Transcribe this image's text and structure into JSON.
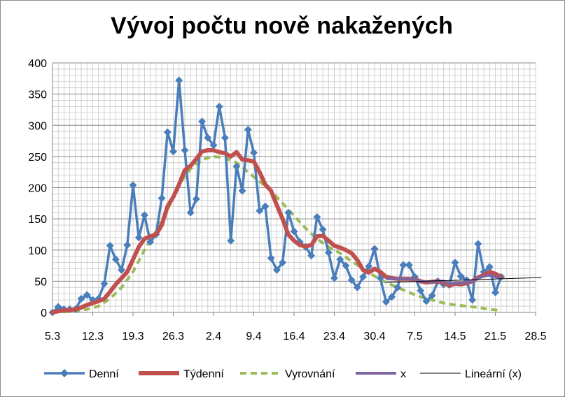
{
  "chart_data": {
    "type": "line",
    "title": "Vývoj počtu nově nakažených",
    "xlabel": "",
    "ylabel": "",
    "x_tick_labels": [
      "5.3",
      "12.3",
      "19.3",
      "26.3",
      "2.4",
      "9.4",
      "16.4",
      "23.4",
      "30.4",
      "7.5",
      "14.5",
      "21.5",
      "28.5"
    ],
    "x_domain_days": [
      0,
      84
    ],
    "ylim": [
      0,
      400
    ],
    "y_ticks": [
      0,
      50,
      100,
      150,
      200,
      250,
      300,
      350,
      400
    ],
    "grid": true,
    "legend_position": "bottom",
    "colors": {
      "Denní": "#4a7ebb",
      "Týdenní": "#c0504d",
      "Vyrovnání": "#9bbb59",
      "x": "#8064a2",
      "Lineární (x)": "#000000"
    },
    "series": [
      {
        "name": "Denní",
        "style": "line-diamond",
        "x": [
          0,
          1,
          2,
          3,
          4,
          5,
          6,
          7,
          8,
          9,
          10,
          11,
          12,
          13,
          14,
          15,
          16,
          17,
          18,
          19,
          20,
          21,
          22,
          23,
          24,
          25,
          26,
          27,
          28,
          29,
          30,
          31,
          32,
          33,
          34,
          35,
          36,
          37,
          38,
          39,
          40,
          41,
          42,
          43,
          44,
          45,
          46,
          47,
          48,
          49,
          50,
          51,
          52,
          53,
          54,
          55,
          56,
          57,
          58,
          59,
          60,
          61,
          62,
          63,
          64,
          65,
          66,
          67,
          68,
          69,
          70,
          71,
          72,
          73,
          74,
          75,
          76,
          77,
          78
        ],
        "values": [
          0,
          9,
          5,
          5,
          5,
          22,
          28,
          20,
          22,
          46,
          107,
          85,
          68,
          108,
          204,
          120,
          156,
          113,
          125,
          183,
          289,
          258,
          372,
          260,
          160,
          182,
          306,
          280,
          268,
          330,
          280,
          115,
          234,
          195,
          293,
          256,
          163,
          170,
          87,
          68,
          80,
          160,
          130,
          113,
          105,
          91,
          153,
          133,
          96,
          55,
          85,
          75,
          52,
          40,
          57,
          74,
          102,
          55,
          17,
          25,
          40,
          76,
          76,
          57,
          35,
          18,
          27,
          50,
          45,
          44,
          80,
          58,
          52,
          20,
          110,
          65,
          73,
          32,
          57
        ]
      },
      {
        "name": "Týdenní",
        "style": "thick-line",
        "x": [
          0,
          1,
          2,
          3,
          4,
          5,
          6,
          7,
          8,
          9,
          10,
          11,
          12,
          13,
          14,
          15,
          16,
          17,
          18,
          19,
          20,
          21,
          22,
          23,
          24,
          25,
          26,
          27,
          28,
          29,
          30,
          31,
          32,
          33,
          34,
          35,
          36,
          37,
          38,
          39,
          40,
          41,
          42,
          43,
          44,
          45,
          46,
          47,
          48,
          49,
          50,
          51,
          52,
          53,
          54,
          55,
          56,
          57,
          58,
          59,
          60,
          61,
          62,
          63,
          64,
          65,
          66,
          67,
          68,
          69,
          70,
          71,
          72,
          73,
          74,
          75,
          76,
          77,
          78
        ],
        "values": [
          0,
          2,
          3,
          4,
          5,
          8,
          12,
          15,
          18,
          22,
          33,
          45,
          55,
          65,
          85,
          105,
          118,
          122,
          125,
          140,
          170,
          185,
          205,
          228,
          235,
          246,
          258,
          260,
          260,
          257,
          255,
          250,
          257,
          245,
          244,
          242,
          225,
          205,
          195,
          172,
          150,
          125,
          115,
          108,
          106,
          108,
          122,
          123,
          115,
          107,
          104,
          100,
          95,
          84,
          68,
          64,
          70,
          65,
          57,
          55,
          54,
          54,
          54,
          53,
          50,
          48,
          49,
          50,
          48,
          43,
          46,
          45,
          47,
          50,
          56,
          60,
          65,
          62,
          57
        ]
      },
      {
        "name": "Vyrovnání",
        "style": "dashed",
        "x": [
          0,
          2,
          4,
          6,
          8,
          10,
          12,
          14,
          16,
          18,
          20,
          22,
          24,
          26,
          28,
          30,
          32,
          34,
          36,
          38,
          40,
          42,
          44,
          46,
          48,
          50,
          52,
          54,
          56,
          58,
          60,
          62,
          64,
          66,
          68,
          70,
          72,
          74,
          76,
          78
        ],
        "values": [
          0,
          1,
          2,
          5,
          10,
          22,
          40,
          65,
          100,
          130,
          165,
          205,
          230,
          245,
          250,
          248,
          240,
          225,
          210,
          195,
          175,
          155,
          135,
          118,
          105,
          95,
          82,
          70,
          58,
          48,
          40,
          32,
          25,
          20,
          15,
          12,
          10,
          8,
          5,
          3
        ]
      },
      {
        "name": "x",
        "style": "thick-line",
        "x": [
          58,
          59,
          60,
          61,
          62,
          63,
          64,
          65,
          66,
          67,
          68,
          69,
          70,
          71,
          72,
          73,
          74,
          75,
          76,
          77,
          78
        ],
        "values": [
          54,
          54,
          54,
          54,
          54,
          53,
          50,
          49,
          49,
          50,
          50,
          46,
          47,
          47,
          48,
          50,
          55,
          58,
          60,
          57,
          56
        ]
      },
      {
        "name": "Lineární (x)",
        "style": "thin-line",
        "x": [
          58,
          85
        ],
        "values": [
          48,
          56
        ]
      }
    ]
  }
}
